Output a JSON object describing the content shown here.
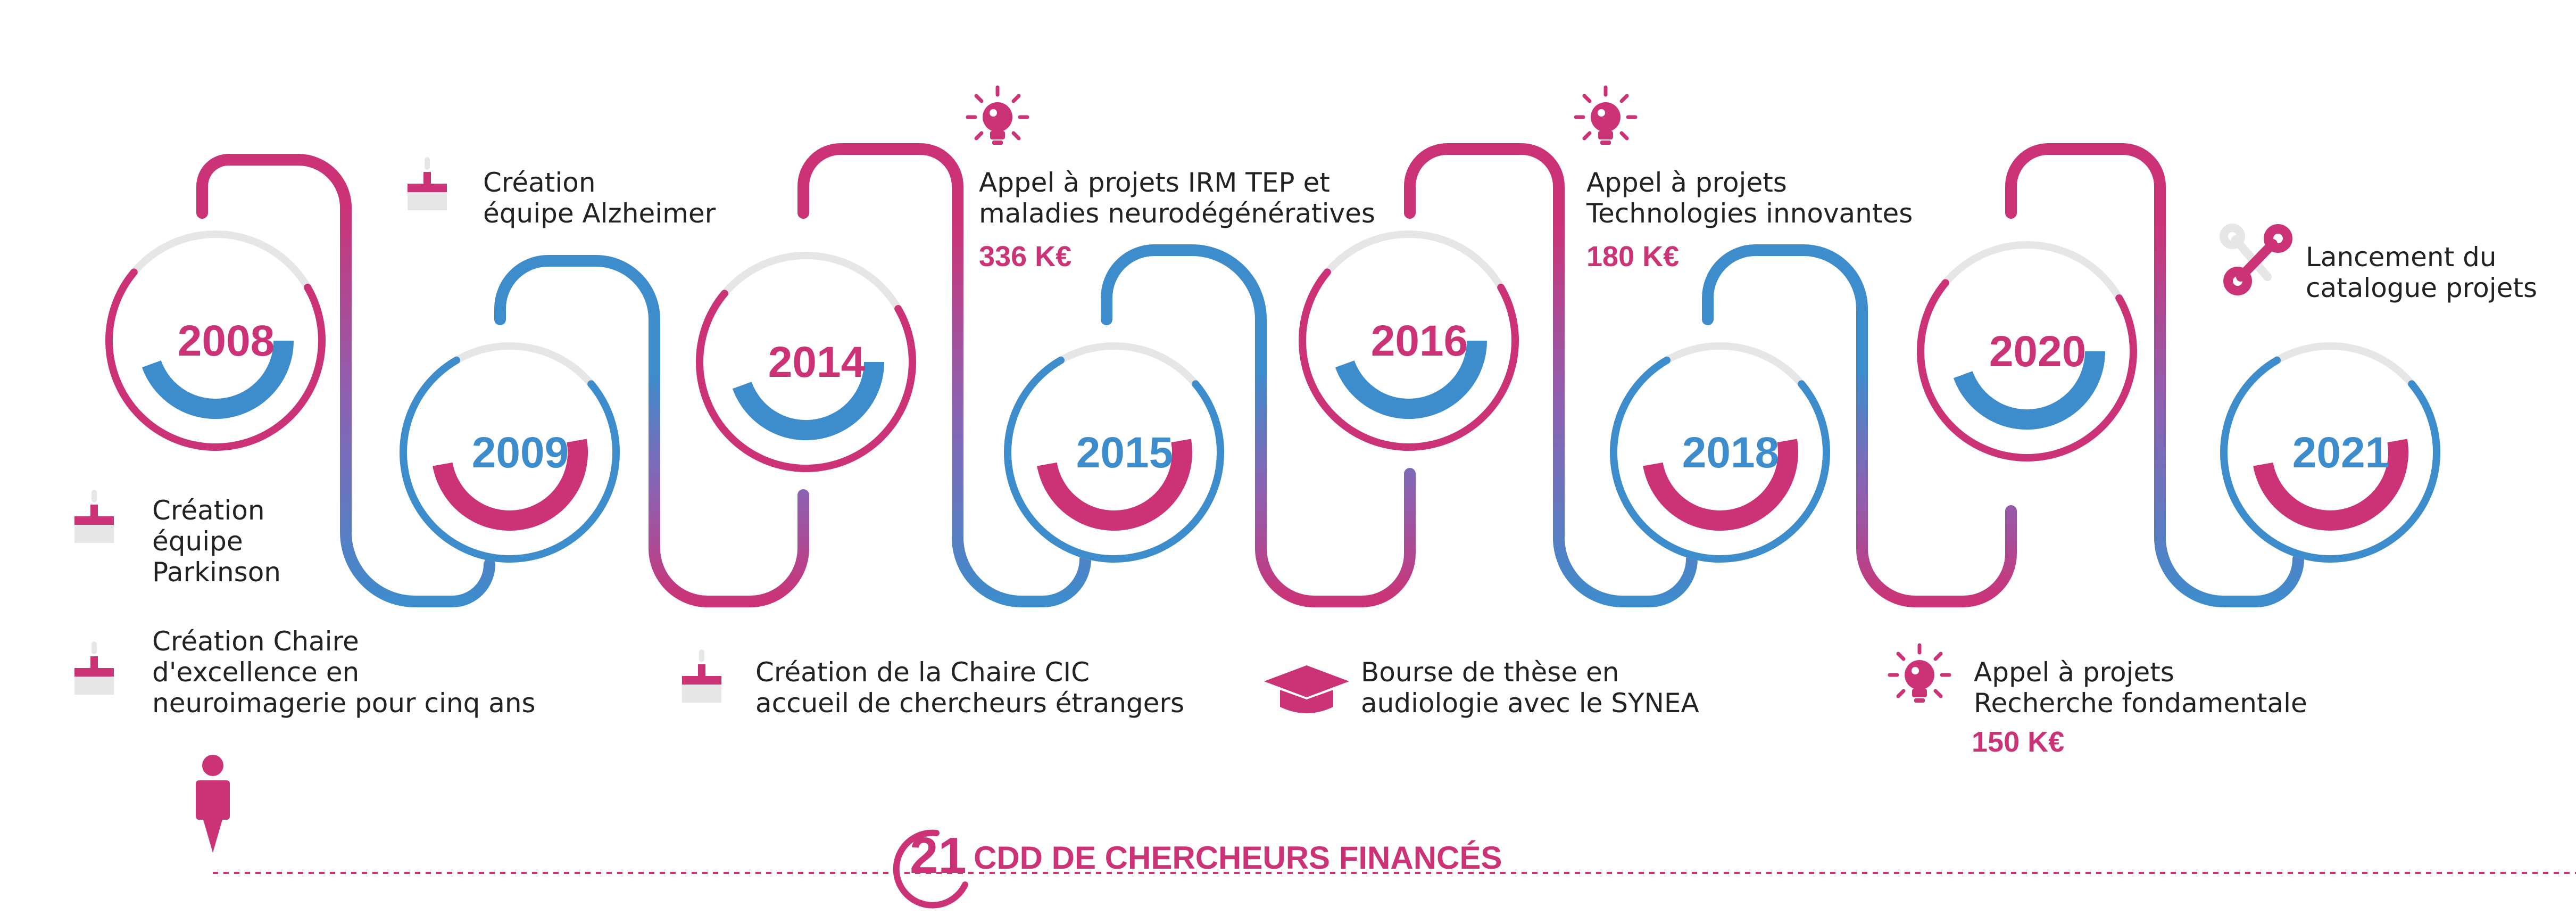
{
  "colors": {
    "pink": "#cc3377",
    "blue": "#3d8ccc",
    "purple": "#8a63b3",
    "grey": "#e6e6e6",
    "text": "#222222"
  },
  "years": [
    "2008",
    "2009",
    "2014",
    "2015",
    "2016",
    "2018",
    "2020",
    "2021"
  ],
  "events": {
    "e2008_a": {
      "lines": [
        "Création",
        "équipe",
        "Parkinson"
      ],
      "icon": "cake-icon"
    },
    "e2008_b": {
      "lines": [
        "Création Chaire",
        "d'excellence en",
        "neuroimagerie pour cinq ans"
      ],
      "icon": "cake-icon"
    },
    "e2009": {
      "lines": [
        "Création",
        "équipe Alzheimer"
      ],
      "icon": "cake-icon"
    },
    "e2014": {
      "lines": [
        "Création de la Chaire CIC",
        "accueil de chercheurs étrangers"
      ],
      "icon": "cake-icon"
    },
    "e2015": {
      "lines": [
        "Appel à projets IRM TEP et",
        "maladies neurodégénératives"
      ],
      "amount": "336 K€",
      "icon": "lightbulb-icon"
    },
    "e2016": {
      "lines": [
        "Bourse de thèse en",
        "audiologie avec le SYNEA"
      ],
      "icon": "graduation-cap-icon"
    },
    "e2018": {
      "lines": [
        "Appel à projets",
        "Technologies innovantes"
      ],
      "amount": "180 K€",
      "icon": "lightbulb-icon"
    },
    "e2020": {
      "lines": [
        "Appel à projets",
        "Recherche fondamentale"
      ],
      "amount": "150 K€",
      "icon": "lightbulb-icon"
    },
    "e2021": {
      "lines": [
        "Lancement du",
        "catalogue projets"
      ],
      "icon": "tools-icon"
    }
  },
  "footer": {
    "count": "21",
    "text": "CDD DE CHERCHEURS FINANCÉS",
    "icon": "researcher-icon"
  }
}
